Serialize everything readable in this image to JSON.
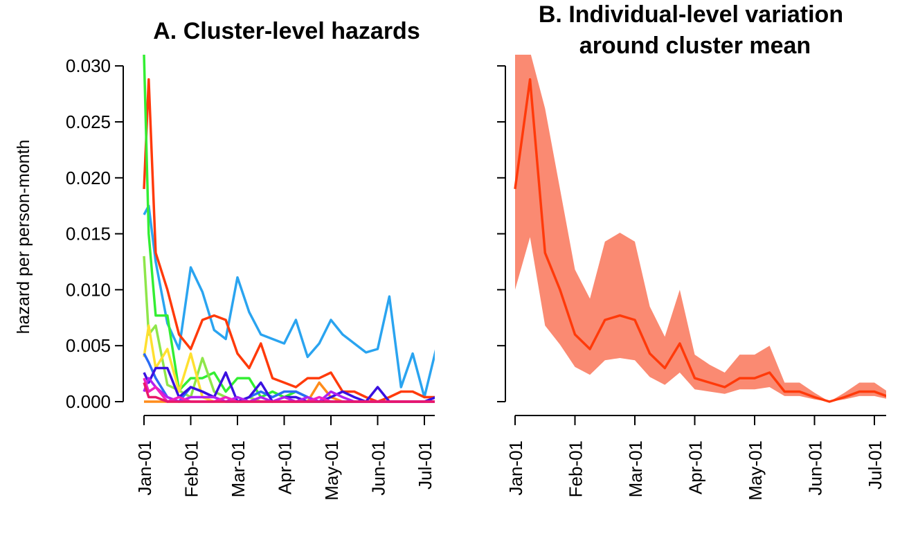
{
  "chart_data": [
    {
      "type": "line",
      "title": "A. Cluster-level hazards",
      "ylabel": "hazard per person-month",
      "xlabel": "",
      "x_tick_labels": [
        "Jan-01",
        "Feb-01",
        "Mar-01",
        "Apr-01",
        "May-01",
        "Jun-01",
        "Jul-01"
      ],
      "x_tick_months": [
        0,
        1,
        2,
        3,
        4,
        5,
        6
      ],
      "y_ticks": [
        0.0,
        0.005,
        0.01,
        0.015,
        0.02,
        0.025,
        0.03
      ],
      "y_tick_labels": [
        "0.000",
        "0.005",
        "0.010",
        "0.015",
        "0.020",
        "0.025",
        "0.030"
      ],
      "ylim": [
        0,
        0.031
      ],
      "x": [
        0.0,
        0.1,
        0.25,
        0.5,
        0.75,
        1.0,
        1.25,
        1.5,
        1.75,
        2.0,
        2.25,
        2.5,
        2.75,
        3.0,
        3.25,
        3.5,
        3.75,
        4.0,
        4.25,
        4.5,
        4.75,
        5.0,
        5.25,
        5.5,
        5.75,
        6.0,
        6.25
      ],
      "series": [
        {
          "color": "#2aa4f0",
          "values": [
            0.0167,
            0.0175,
            0.0125,
            0.007,
            0.0047,
            0.012,
            0.0098,
            0.0064,
            0.0056,
            0.0111,
            0.008,
            0.006,
            0.0056,
            0.0052,
            0.0073,
            0.004,
            0.0052,
            0.0073,
            0.006,
            0.0052,
            0.0044,
            0.0047,
            0.0094,
            0.0013,
            0.0043,
            0.0004,
            0.0047
          ]
        },
        {
          "color": "#ff3a0a",
          "values": [
            0.019,
            0.0288,
            0.0133,
            0.01,
            0.006,
            0.0047,
            0.0073,
            0.0077,
            0.0073,
            0.0043,
            0.003,
            0.0052,
            0.0021,
            0.0017,
            0.0013,
            0.0021,
            0.0021,
            0.0026,
            0.0009,
            0.0009,
            0.0004,
            0.0,
            0.0004,
            0.0009,
            0.0009,
            0.0004,
            0.0004
          ]
        },
        {
          "color": "#33ee33",
          "values": [
            0.031,
            0.015,
            0.0077,
            0.0077,
            0.001,
            0.0021,
            0.0021,
            0.0026,
            0.0009,
            0.0021,
            0.0021,
            0.0004,
            0.0009,
            0.0004,
            0.0009,
            0.0004,
            0.0,
            0.0,
            0.0,
            0.0,
            0.0,
            0.0,
            0.0,
            0.0,
            0.0,
            0.0,
            0.0
          ]
        },
        {
          "color": "#8ee64a",
          "values": [
            0.013,
            0.006,
            0.0068,
            0.0015,
            0.001,
            0.0004,
            0.0039,
            0.0009,
            0.0004,
            0.0,
            0.0004,
            0.0,
            0.0,
            0.0,
            0.0,
            0.0,
            0.0,
            0.0,
            0.0,
            0.0,
            0.0,
            0.0,
            0.0,
            0.0,
            0.0,
            0.0,
            0.0
          ]
        },
        {
          "color": "#ffe030",
          "values": [
            0.004,
            0.0068,
            0.003,
            0.0047,
            0.0009,
            0.0043,
            0.0004,
            0.0,
            0.0,
            0.0,
            0.0,
            0.0,
            0.0,
            0.0,
            0.0,
            0.0,
            0.0,
            0.0,
            0.0,
            0.0,
            0.0,
            0.0,
            0.0,
            0.0,
            0.0,
            0.0,
            0.0
          ]
        },
        {
          "color": "#ff8c1a",
          "values": [
            0.0,
            0.0,
            0.0,
            0.0,
            0.0,
            0.0,
            0.0,
            0.0,
            0.0,
            0.0,
            0.0,
            0.0,
            0.0,
            0.0,
            0.0,
            0.0,
            0.0017,
            0.0004,
            0.0,
            0.0,
            0.0,
            0.0,
            0.0,
            0.0,
            0.0,
            0.0,
            0.0
          ]
        },
        {
          "color": "#2a6cf5",
          "values": [
            0.0043,
            0.0035,
            0.0021,
            0.0004,
            0.0,
            0.0013,
            0.0009,
            0.0004,
            0.0,
            0.0,
            0.0004,
            0.0009,
            0.0004,
            0.0009,
            0.0009,
            0.0004,
            0.0,
            0.0,
            0.0,
            0.0,
            0.0,
            0.0,
            0.0,
            0.0,
            0.0,
            0.0,
            0.0004
          ]
        },
        {
          "color": "#3a10e0",
          "values": [
            0.0026,
            0.0017,
            0.003,
            0.003,
            0.0004,
            0.0013,
            0.0009,
            0.0004,
            0.0026,
            0.0,
            0.0004,
            0.0017,
            0.0,
            0.0004,
            0.0004,
            0.0,
            0.0,
            0.0004,
            0.0009,
            0.0004,
            0.0,
            0.0013,
            0.0,
            0.0,
            0.0,
            0.0,
            0.0004
          ]
        },
        {
          "color": "#b020f0",
          "values": [
            0.0009,
            0.0021,
            0.0013,
            0.0004,
            0.0,
            0.0004,
            0.0004,
            0.0004,
            0.0,
            0.0004,
            0.0,
            0.0004,
            0.0,
            0.0004,
            0.0,
            0.0004,
            0.0,
            0.0009,
            0.0004,
            0.0,
            0.0,
            0.0,
            0.0,
            0.0,
            0.0,
            0.0,
            0.0
          ]
        },
        {
          "color": "#f020c0",
          "values": [
            0.0021,
            0.0009,
            0.0013,
            0.0,
            0.0004,
            0.0,
            0.0,
            0.0,
            0.0004,
            0.0,
            0.0,
            0.0,
            0.0,
            0.0,
            0.0,
            0.0,
            0.0004,
            0.0,
            0.0,
            0.0,
            0.0,
            0.0,
            0.0,
            0.0,
            0.0,
            0.0,
            0.0
          ]
        },
        {
          "color": "#e8186a",
          "values": [
            0.0017,
            0.0004,
            0.0004,
            0.0,
            0.0,
            0.0,
            0.0,
            0.0,
            0.0,
            0.0,
            0.0,
            0.0,
            0.0,
            0.0,
            0.0,
            0.0,
            0.0,
            0.0,
            0.0,
            0.0,
            0.0,
            0.0,
            0.0,
            0.0,
            0.0,
            0.0,
            0.0
          ]
        }
      ]
    },
    {
      "type": "area",
      "title": "B. Individual-level variation around cluster mean",
      "title_lines": [
        "B. Individual-level variation",
        "around cluster mean"
      ],
      "x_tick_labels": [
        "Jan-01",
        "Feb-01",
        "Mar-01",
        "Apr-01",
        "May-01",
        "Jun-01",
        "Jul-01"
      ],
      "x_tick_months": [
        0,
        1,
        2,
        3,
        4,
        5,
        6
      ],
      "ylim": [
        0,
        0.031
      ],
      "band_color": "#fa8a72",
      "line_color": "#ff3a0a",
      "x": [
        0.0,
        0.25,
        0.5,
        0.75,
        1.0,
        1.25,
        1.5,
        1.75,
        2.0,
        2.25,
        2.5,
        2.75,
        3.0,
        3.25,
        3.5,
        3.75,
        4.0,
        4.25,
        4.5,
        4.75,
        5.0,
        5.25,
        5.5,
        5.75,
        6.0,
        6.25
      ],
      "mean": [
        0.019,
        0.0288,
        0.0133,
        0.01,
        0.006,
        0.0047,
        0.0073,
        0.0077,
        0.0073,
        0.0043,
        0.003,
        0.0052,
        0.0021,
        0.0017,
        0.0013,
        0.0021,
        0.0021,
        0.0026,
        0.0009,
        0.0009,
        0.0004,
        0.0,
        0.0004,
        0.0009,
        0.0009,
        0.0004
      ],
      "upper": [
        0.0313,
        0.0313,
        0.0262,
        0.019,
        0.0118,
        0.0092,
        0.0143,
        0.0151,
        0.0143,
        0.0085,
        0.0058,
        0.01,
        0.0042,
        0.0033,
        0.0026,
        0.0042,
        0.0042,
        0.005,
        0.0017,
        0.0017,
        0.0008,
        0.0,
        0.0008,
        0.0017,
        0.0017,
        0.0008
      ],
      "lower": [
        0.01,
        0.0147,
        0.0068,
        0.0051,
        0.0031,
        0.0024,
        0.0037,
        0.0039,
        0.0037,
        0.0022,
        0.0015,
        0.0026,
        0.0011,
        0.0009,
        0.0007,
        0.0011,
        0.0011,
        0.0013,
        0.0005,
        0.0005,
        0.0002,
        0.0,
        0.0002,
        0.0005,
        0.0005,
        0.0002
      ]
    }
  ]
}
